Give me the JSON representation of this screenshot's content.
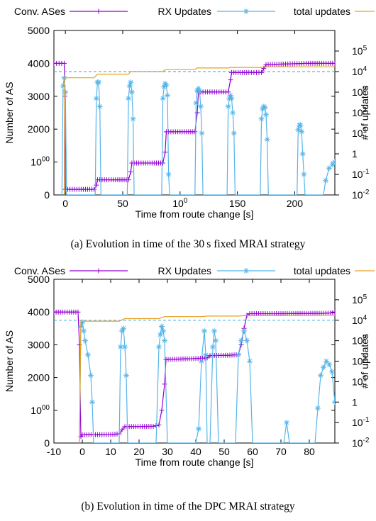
{
  "figure": {
    "captions": [
      "(a) Evolution in time of the 30 s fixed MRAI strategy",
      "(b) Evolution in time of the DPC MRAI strategy"
    ]
  },
  "chart_data": [
    {
      "type": "line",
      "title": "",
      "xlabel": "Time from route change [s]",
      "ylabel": "Number of AS",
      "y2label": "# of updates",
      "y2scale": "log",
      "xlim": [
        -10,
        235
      ],
      "ylim": [
        0,
        5000
      ],
      "y2lim": [
        0.01,
        1000000
      ],
      "xticks": [
        "0",
        "50",
        "100",
        "150",
        "200"
      ],
      "yticks": [
        "0",
        "1000",
        "2000",
        "3000",
        "4000",
        "5000"
      ],
      "y2ticks": [
        "10-2",
        "10-1",
        "1",
        "101",
        "102",
        "103",
        "104",
        "105"
      ],
      "legend": [
        "Conv. ASes",
        "RX Updates",
        "total updates"
      ],
      "legend_position": "top (outside)",
      "colors": {
        "conv": "#9400d3",
        "rx": "#56b4e9",
        "total": "#e6a020"
      },
      "series": [
        {
          "name": "Conv. ASes",
          "axis": "left",
          "points": [
            [
              -10,
              4000
            ],
            [
              -1,
              4000
            ],
            [
              -0.5,
              3000
            ],
            [
              0,
              170
            ],
            [
              10,
              170
            ],
            [
              25,
              170
            ],
            [
              27,
              300
            ],
            [
              28,
              460
            ],
            [
              40,
              460
            ],
            [
              55,
              460
            ],
            [
              57,
              700
            ],
            [
              58,
              970
            ],
            [
              70,
              970
            ],
            [
              85,
              970
            ],
            [
              87,
              1300
            ],
            [
              88,
              1920
            ],
            [
              100,
              1920
            ],
            [
              113,
              1920
            ],
            [
              115,
              2500
            ],
            [
              116,
              3130
            ],
            [
              130,
              3130
            ],
            [
              142,
              3130
            ],
            [
              144,
              3500
            ],
            [
              145,
              3720
            ],
            [
              160,
              3720
            ],
            [
              171,
              3720
            ],
            [
              173,
              3850
            ],
            [
              175,
              3960
            ],
            [
              190,
              3980
            ],
            [
              210,
              4000
            ],
            [
              235,
              4000
            ]
          ]
        },
        {
          "name": "RX Updates",
          "axis": "right",
          "points": [
            [
              -3,
              0.01
            ],
            [
              -2,
              2000
            ],
            [
              -1,
              5000
            ],
            [
              0,
              1000
            ],
            [
              1,
              0.01
            ],
            [
              26,
              0.01
            ],
            [
              27,
              500
            ],
            [
              28,
              3000
            ],
            [
              29,
              3000
            ],
            [
              30,
              200
            ],
            [
              31,
              0.01
            ],
            [
              54,
              0.01
            ],
            [
              55,
              500
            ],
            [
              56,
              2000
            ],
            [
              57,
              3000
            ],
            [
              58,
              1000
            ],
            [
              59,
              50
            ],
            [
              60,
              0.01
            ],
            [
              84,
              0.01
            ],
            [
              85,
              500
            ],
            [
              86,
              1800
            ],
            [
              87,
              2600
            ],
            [
              88,
              2200
            ],
            [
              89,
              700
            ],
            [
              90,
              0.1
            ],
            [
              91,
              0.01
            ],
            [
              113,
              0.01
            ],
            [
              114,
              300
            ],
            [
              115,
              1200
            ],
            [
              116,
              1500
            ],
            [
              117,
              1100
            ],
            [
              118,
              200
            ],
            [
              119,
              10
            ],
            [
              120,
              0.01
            ],
            [
              141,
              0.01
            ],
            [
              142,
              200
            ],
            [
              143,
              500
            ],
            [
              144,
              700
            ],
            [
              145,
              500
            ],
            [
              146,
              100
            ],
            [
              147,
              10
            ],
            [
              148,
              0.01
            ],
            [
              170,
              0.01
            ],
            [
              171,
              50
            ],
            [
              172,
              150
            ],
            [
              173,
              200
            ],
            [
              174,
              180
            ],
            [
              175,
              80
            ],
            [
              176,
              5
            ],
            [
              177,
              0.01
            ],
            [
              202,
              0.01
            ],
            [
              203,
              15
            ],
            [
              204,
              25
            ],
            [
              205,
              25
            ],
            [
              206,
              12
            ],
            [
              207,
              1
            ],
            [
              208,
              0.1
            ],
            [
              209,
              0.01
            ],
            [
              225,
              0.01
            ],
            [
              227,
              0.05
            ],
            [
              230,
              0.2
            ],
            [
              233,
              0.3
            ],
            [
              235,
              0.4
            ]
          ]
        },
        {
          "name": "total updates",
          "axis": "right",
          "points": [
            [
              -1,
              0.01
            ],
            [
              -0.5,
              5000
            ],
            [
              25,
              5000
            ],
            [
              28,
              7500
            ],
            [
              55,
              7500
            ],
            [
              57,
              10000
            ],
            [
              85,
              10000
            ],
            [
              87,
              12500
            ],
            [
              113,
              12500
            ],
            [
              115,
              15000
            ],
            [
              142,
              15000
            ],
            [
              144,
              16000
            ],
            [
              171,
              16000
            ],
            [
              173,
              17000
            ],
            [
              235,
              17000
            ]
          ]
        },
        {
          "name": "",
          "axis": "right",
          "dashed": true,
          "points": [
            [
              -10,
              10000
            ],
            [
              235,
              10000
            ]
          ]
        }
      ]
    },
    {
      "type": "line",
      "title": "",
      "xlabel": "Time from route change [s]",
      "ylabel": "Number of AS",
      "y2label": "# of updates",
      "y2scale": "log",
      "xlim": [
        -10,
        89
      ],
      "ylim": [
        0,
        5000
      ],
      "y2lim": [
        0.01,
        1000000
      ],
      "xticks": [
        "-10",
        "0",
        "10",
        "20",
        "30",
        "40",
        "50",
        "60",
        "70",
        "80"
      ],
      "yticks": [
        "0",
        "1000",
        "2000",
        "3000",
        "4000",
        "5000"
      ],
      "y2ticks": [
        "10-2",
        "10-1",
        "1",
        "101",
        "102",
        "103",
        "104",
        "105"
      ],
      "legend": [
        "Conv. ASes",
        "RX Updates",
        "total updates"
      ],
      "legend_position": "top (outside)",
      "colors": {
        "conv": "#9400d3",
        "rx": "#56b4e9",
        "total": "#e6a020"
      },
      "series": [
        {
          "name": "Conv. ASes",
          "axis": "left",
          "points": [
            [
              -10,
              4000
            ],
            [
              -1.5,
              4000
            ],
            [
              -1,
              3000
            ],
            [
              -0.5,
              200
            ],
            [
              0,
              250
            ],
            [
              10,
              260
            ],
            [
              13,
              280
            ],
            [
              14,
              400
            ],
            [
              15,
              500
            ],
            [
              25,
              510
            ],
            [
              27,
              550
            ],
            [
              28,
              1000
            ],
            [
              29,
              1800
            ],
            [
              29.5,
              2550
            ],
            [
              40,
              2580
            ],
            [
              44,
              2600
            ],
            [
              45,
              2670
            ],
            [
              52,
              2680
            ],
            [
              55,
              2700
            ],
            [
              56,
              3000
            ],
            [
              57,
              3500
            ],
            [
              58,
              3900
            ],
            [
              59,
              3950
            ],
            [
              70,
              3950
            ],
            [
              85,
              3960
            ],
            [
              89,
              3980
            ]
          ]
        },
        {
          "name": "RX Updates",
          "axis": "right",
          "points": [
            [
              -1,
              0.01
            ],
            [
              -0.5,
              5000
            ],
            [
              0,
              8000
            ],
            [
              0.5,
              3000
            ],
            [
              1,
              1000
            ],
            [
              2,
              200
            ],
            [
              3,
              20
            ],
            [
              3.5,
              1
            ],
            [
              4,
              0.01
            ],
            [
              13,
              0.01
            ],
            [
              13.5,
              500
            ],
            [
              14,
              3000
            ],
            [
              14.5,
              4000
            ],
            [
              15,
              500
            ],
            [
              15.5,
              20
            ],
            [
              16,
              0.01
            ],
            [
              26,
              0.01
            ],
            [
              27,
              500
            ],
            [
              27.5,
              2000
            ],
            [
              28,
              5000
            ],
            [
              28.5,
              3000
            ],
            [
              29,
              1000
            ],
            [
              30,
              0.01
            ],
            [
              40,
              0.01
            ],
            [
              41,
              0.05
            ],
            [
              42,
              100
            ],
            [
              43,
              3000
            ],
            [
              43.5,
              200
            ],
            [
              44,
              0.01
            ],
            [
              45,
              0.01
            ],
            [
              46,
              500
            ],
            [
              46.5,
              3000
            ],
            [
              47,
              1000
            ],
            [
              48,
              0.01
            ],
            [
              54,
              0.01
            ],
            [
              55,
              200
            ],
            [
              56,
              1000
            ],
            [
              57,
              3000
            ],
            [
              58,
              1000
            ],
            [
              59,
              100
            ],
            [
              60,
              0.01
            ],
            [
              71,
              0.01
            ],
            [
              72,
              0.1
            ],
            [
              73,
              0.01
            ],
            [
              82,
              0.01
            ],
            [
              83,
              0.5
            ],
            [
              84,
              20
            ],
            [
              85,
              50
            ],
            [
              86,
              100
            ],
            [
              87,
              70
            ],
            [
              88,
              30
            ],
            [
              89,
              1
            ]
          ]
        },
        {
          "name": "total updates",
          "axis": "right",
          "points": [
            [
              -1,
              0.01
            ],
            [
              -0.5,
              9000
            ],
            [
              13,
              9000
            ],
            [
              15,
              12000
            ],
            [
              27,
              12000
            ],
            [
              29,
              15000
            ],
            [
              42,
              15000
            ],
            [
              44,
              16000
            ],
            [
              55,
              16000
            ],
            [
              58,
              17000
            ],
            [
              89,
              17500
            ]
          ]
        },
        {
          "name": "",
          "axis": "right",
          "dashed": true,
          "points": [
            [
              -10,
              10000
            ],
            [
              89,
              10000
            ]
          ]
        }
      ]
    }
  ]
}
